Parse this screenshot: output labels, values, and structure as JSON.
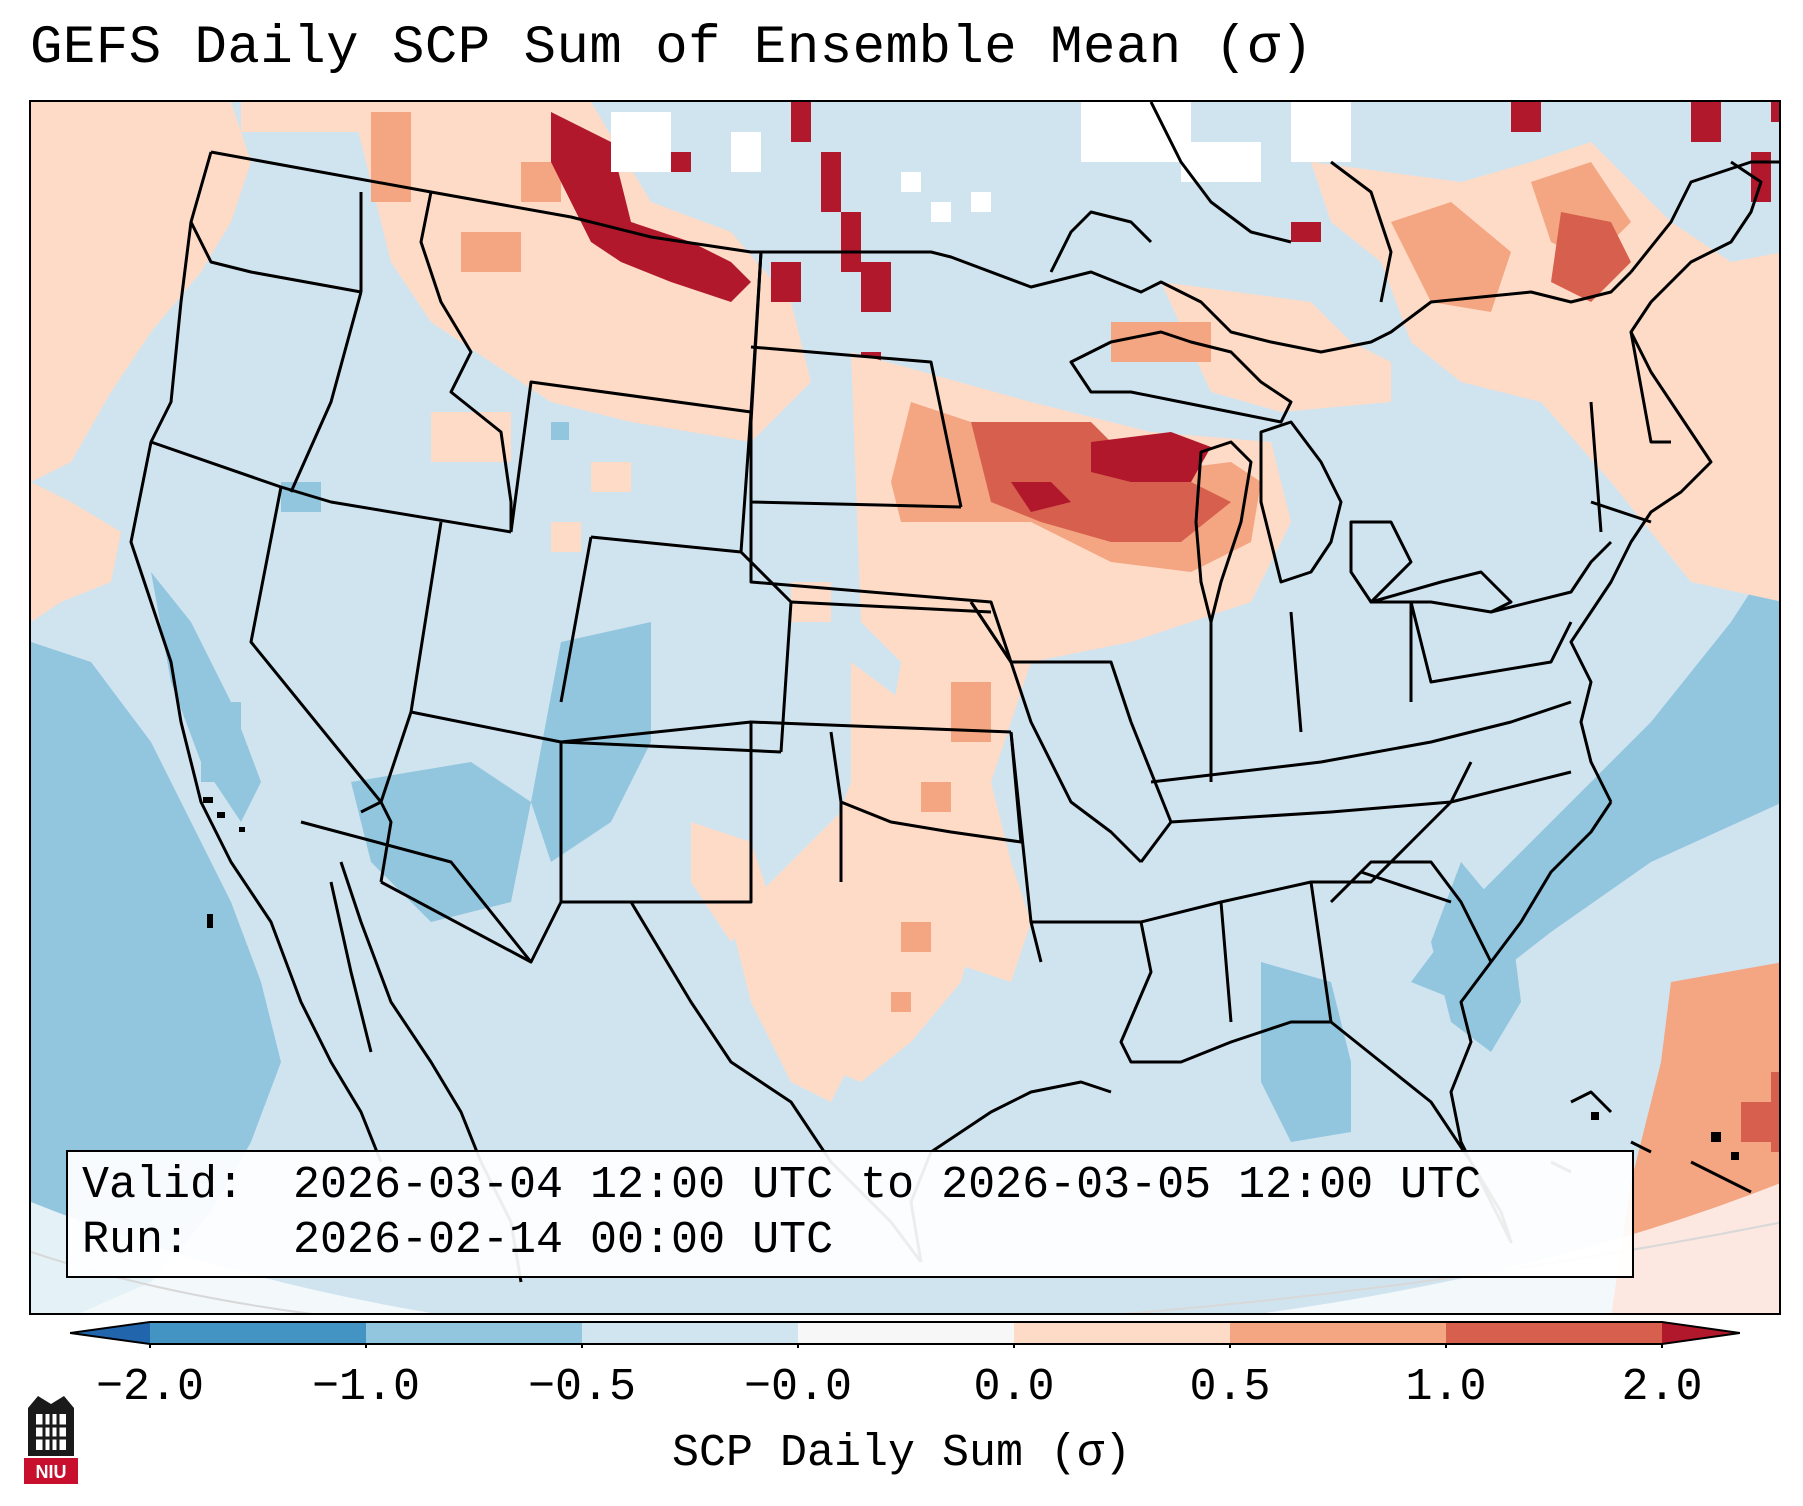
{
  "title": "GEFS Daily SCP Sum of Ensemble Mean (σ)",
  "info": {
    "valid_label": "Valid:",
    "valid_value": "2026-03-04 12:00 UTC to 2026-03-05 12:00 UTC",
    "run_label": "Run:",
    "run_value": "2026-02-14 00:00 UTC"
  },
  "colorbar": {
    "label": "SCP Daily Sum (σ)",
    "ticks": [
      "−2.0",
      "−1.0",
      "−0.5",
      "−0.0",
      "0.0",
      "0.5",
      "1.0",
      "2.0"
    ],
    "bin_colors": [
      "#4393c3",
      "#92c5de",
      "#d1e5f0",
      "#f7f7f7",
      "#fddbc7",
      "#f4a582",
      "#d6604d"
    ],
    "under_color": "#2166ac",
    "over_color": "#b2182b"
  },
  "map": {
    "region": "Contiguous United States",
    "field_colors": {
      "background": "#d0e4f0",
      "below_neg1": "#92c5de",
      "near_zero": "#ffffff",
      "low_positive": "#fddbc7",
      "mid_positive": "#f4a582",
      "high_positive": "#d6604d",
      "max_positive": "#b2182b"
    }
  },
  "logo": {
    "text": "NIU",
    "color": "#c8102e"
  }
}
